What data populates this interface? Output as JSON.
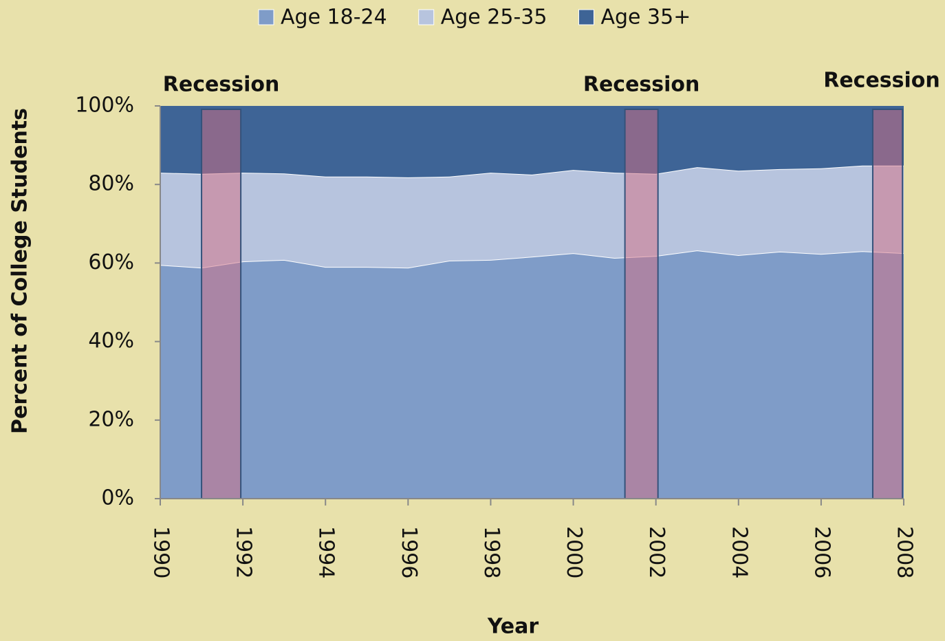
{
  "chart_data": {
    "type": "stacked-area",
    "x_label": "Year",
    "y_label": "Percent of College Students",
    "x": [
      1990,
      1991,
      1992,
      1993,
      1994,
      1995,
      1996,
      1997,
      1998,
      1999,
      2000,
      2001,
      2002,
      2003,
      2004,
      2005,
      2006,
      2007,
      2008
    ],
    "series": [
      {
        "name": "Age 18-24",
        "color": "#7f9cc8",
        "values": [
          59.5,
          58.8,
          60.4,
          60.8,
          59.0,
          59.0,
          58.8,
          60.6,
          60.8,
          61.6,
          62.5,
          61.3,
          61.8,
          63.2,
          62.0,
          62.9,
          62.3,
          63.0,
          62.5
        ]
      },
      {
        "name": "Age 25-35",
        "color": "#b7c4de",
        "values": [
          23.5,
          23.9,
          22.6,
          22.0,
          23.0,
          23.0,
          23.0,
          21.4,
          22.2,
          20.9,
          21.2,
          21.7,
          20.9,
          21.2,
          21.5,
          21.0,
          21.8,
          21.8,
          22.3
        ]
      },
      {
        "name": "Age 35+",
        "color": "#3e6496",
        "values": [
          17.0,
          17.3,
          17.0,
          17.2,
          18.0,
          18.0,
          18.2,
          18.0,
          17.0,
          17.5,
          16.3,
          17.0,
          17.3,
          15.6,
          16.5,
          16.1,
          15.9,
          15.2,
          15.2
        ]
      }
    ],
    "xlim": [
      1990,
      2008
    ],
    "xticks": [
      1990,
      1992,
      1994,
      1996,
      1998,
      2000,
      2002,
      2004,
      2006,
      2008
    ],
    "ylim": [
      0,
      100
    ],
    "yticks": [
      {
        "value": 0,
        "label": "0%"
      },
      {
        "value": 20,
        "label": "20%"
      },
      {
        "value": 40,
        "label": "40%"
      },
      {
        "value": 60,
        "label": "60%"
      },
      {
        "value": 80,
        "label": "80%"
      },
      {
        "value": 100,
        "label": "100%"
      }
    ],
    "legend": "top",
    "recessions": [
      {
        "label": "Recession",
        "start": 1991.0,
        "end": 1991.95
      },
      {
        "label": "Recession",
        "start": 2001.25,
        "end": 2002.05
      },
      {
        "label": "Recession",
        "start": 2007.25,
        "end": 2007.97
      }
    ]
  }
}
